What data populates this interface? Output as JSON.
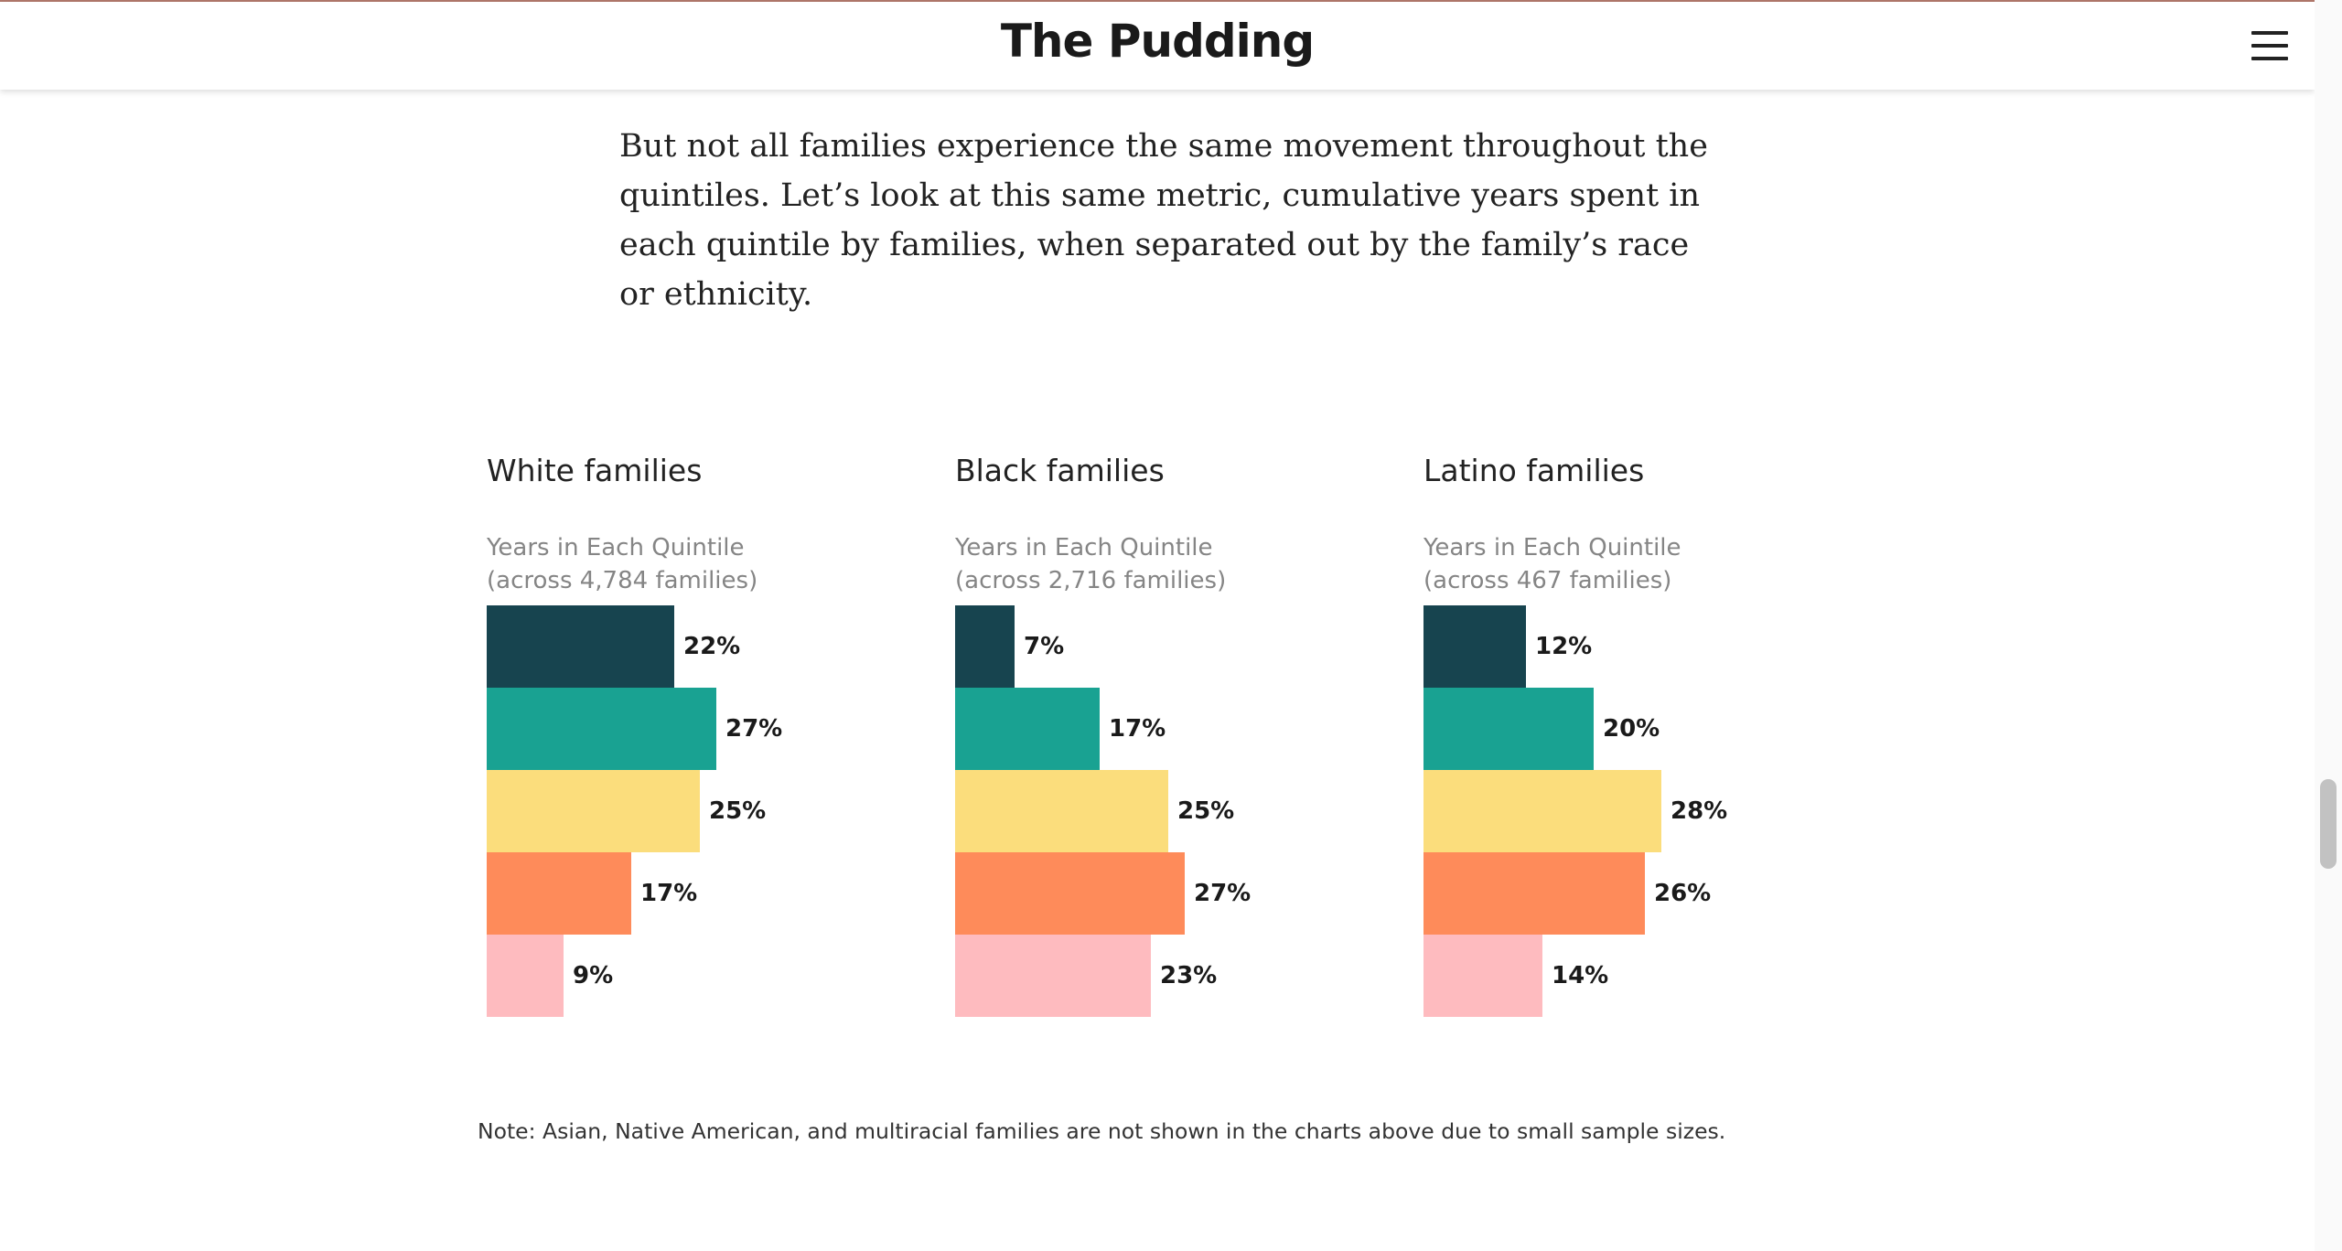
{
  "header": {
    "logo": "The Pudding"
  },
  "intro": "But not all families experience the same movement throughout the quintiles. Let’s look at this same metric, cumulative years spent in each quintile by families, when separated out by the family’s race or ethnicity.",
  "colors": [
    "#17444f",
    "#19a292",
    "#fbdd7c",
    "#fe8b5a",
    "#febbbf"
  ],
  "chart_data": [
    {
      "type": "bar",
      "title": "White families",
      "subtitle": [
        "Years in Each Quintile",
        "(across 4,784 families)"
      ],
      "values": [
        22,
        27,
        25,
        17,
        9
      ],
      "labels": [
        "22%",
        "27%",
        "25%",
        "17%",
        "9%"
      ],
      "xlim": [
        0,
        30
      ],
      "grid": false
    },
    {
      "type": "bar",
      "title": "Black families",
      "subtitle": [
        "Years in Each Quintile",
        "(across 2,716 families)"
      ],
      "values": [
        7,
        17,
        25,
        27,
        23
      ],
      "labels": [
        "7%",
        "17%",
        "25%",
        "27%",
        "23%"
      ],
      "xlim": [
        0,
        30
      ],
      "grid": false
    },
    {
      "type": "bar",
      "title": "Latino families",
      "subtitle": [
        "Years in Each Quintile",
        "(across 467 families)"
      ],
      "values": [
        12,
        20,
        28,
        26,
        14
      ],
      "labels": [
        "12%",
        "20%",
        "28%",
        "26%",
        "14%"
      ],
      "xlim": [
        0,
        30
      ],
      "grid": false
    }
  ],
  "note": "Note: Asian, Native American, and multiracial families are not shown in the charts above due to small sample sizes."
}
